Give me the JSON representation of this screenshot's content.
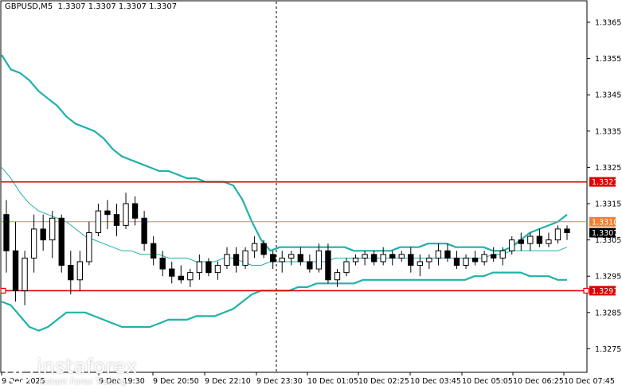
{
  "header": {
    "symbol": "GBPUSD,M5",
    "open": "1.3307",
    "high": "1.3307",
    "low": "1.3307",
    "close": "1.3307"
  },
  "logo": {
    "name": "instaforex",
    "tagline": "Instant Forex Trading"
  },
  "colors": {
    "candle": "#000000",
    "bands": "#20b2aa",
    "support_resistance": "#e00000",
    "pivot": "#f08030",
    "price_label_bg": "#000000",
    "level_label_bg": "#e00000"
  },
  "chart_data": {
    "type": "candlestick",
    "ylim": [
      1.327,
      1.3372
    ],
    "y_ticks": [
      "1.3365",
      "1.3355",
      "1.3345",
      "1.3335",
      "1.3325",
      "1.3315",
      "1.3305",
      "1.3295",
      "1.3285",
      "1.3275"
    ],
    "x_tick_labels": [
      "9 Dec 2025",
      "9 Dec 19:30",
      "9 Dec 20:50",
      "9 Dec 22:10",
      "9 Dec 23:30",
      "10 Dec 01:05",
      "10 Dec 02:25",
      "10 Dec 03:45",
      "10 Dec 05:05",
      "10 Dec 06:25",
      "10 Dec 07:45"
    ],
    "levels": [
      {
        "value": 1.3321,
        "label": "1.3321",
        "kind": "resistance"
      },
      {
        "value": 1.331,
        "label": "1.3310",
        "kind": "pivot"
      },
      {
        "value": 1.3291,
        "label": "1.3291",
        "kind": "support"
      }
    ],
    "current_price": {
      "value": 1.3307,
      "label": "1.3307"
    },
    "upper_band": [
      1.3356,
      1.3352,
      1.3351,
      1.3349,
      1.3346,
      1.3344,
      1.3342,
      1.3339,
      1.3337,
      1.3336,
      1.3335,
      1.3333,
      1.333,
      1.3328,
      1.3327,
      1.3326,
      1.3325,
      1.3324,
      1.3324,
      1.3323,
      1.3322,
      1.3322,
      1.3321,
      1.3321,
      1.3321,
      1.332,
      1.3316,
      1.331,
      1.3305,
      1.3302,
      1.3303,
      1.3303,
      1.3303,
      1.3303,
      1.3303,
      1.3303,
      1.3303,
      1.3303,
      1.3302,
      1.3302,
      1.3302,
      1.3302,
      1.3302,
      1.3303,
      1.3303,
      1.3303,
      1.3304,
      1.3304,
      1.3304,
      1.3303,
      1.3303,
      1.3303,
      1.3303,
      1.3302,
      1.3302,
      1.3303,
      1.3305,
      1.3307,
      1.3308,
      1.3309,
      1.331,
      1.3312
    ],
    "middle_band": [
      1.3325,
      1.3322,
      1.3318,
      1.3315,
      1.3313,
      1.3312,
      1.3311,
      1.331,
      1.3308,
      1.3306,
      1.3305,
      1.3304,
      1.3303,
      1.3302,
      1.3302,
      1.3301,
      1.3301,
      1.3301,
      1.33,
      1.33,
      1.33,
      1.3299,
      1.3299,
      1.3299,
      1.33,
      1.33,
      1.3299,
      1.3298,
      1.3298,
      1.3299,
      1.3299,
      1.3299,
      1.3299,
      1.3299,
      1.3299,
      1.3299,
      1.33,
      1.33,
      1.33,
      1.33,
      1.33,
      1.33,
      1.33,
      1.33,
      1.33,
      1.33,
      1.33,
      1.33,
      1.33,
      1.33,
      1.33,
      1.33,
      1.33,
      1.3301,
      1.3301,
      1.3302,
      1.3302,
      1.3302,
      1.3302,
      1.3302,
      1.3302,
      1.3303
    ],
    "lower_band": [
      1.3288,
      1.3287,
      1.3284,
      1.3281,
      1.328,
      1.3281,
      1.3283,
      1.3285,
      1.3285,
      1.3285,
      1.3284,
      1.3283,
      1.3282,
      1.3281,
      1.3281,
      1.3281,
      1.3281,
      1.3282,
      1.3283,
      1.3283,
      1.3283,
      1.3284,
      1.3284,
      1.3284,
      1.3285,
      1.3286,
      1.3288,
      1.329,
      1.3291,
      1.3291,
      1.3291,
      1.3291,
      1.3292,
      1.3292,
      1.3293,
      1.3293,
      1.3293,
      1.3293,
      1.3293,
      1.3294,
      1.3294,
      1.3294,
      1.3294,
      1.3294,
      1.3294,
      1.3294,
      1.3294,
      1.3294,
      1.3294,
      1.3294,
      1.3294,
      1.3295,
      1.3295,
      1.3296,
      1.3296,
      1.3296,
      1.3296,
      1.3295,
      1.3295,
      1.3295,
      1.3294,
      1.3294
    ],
    "candles": [
      [
        1.3312,
        1.3316,
        1.3296,
        1.3302
      ],
      [
        1.3302,
        1.331,
        1.3288,
        1.3291
      ],
      [
        1.3291,
        1.3302,
        1.3287,
        1.33
      ],
      [
        1.33,
        1.3312,
        1.3296,
        1.3308
      ],
      [
        1.3308,
        1.3312,
        1.3302,
        1.3305
      ],
      [
        1.3305,
        1.3313,
        1.33,
        1.3311
      ],
      [
        1.3311,
        1.3312,
        1.3296,
        1.3298
      ],
      [
        1.3298,
        1.3302,
        1.329,
        1.3294
      ],
      [
        1.3294,
        1.3302,
        1.3291,
        1.3299
      ],
      [
        1.3299,
        1.331,
        1.3298,
        1.3307
      ],
      [
        1.3307,
        1.3315,
        1.3306,
        1.3313
      ],
      [
        1.3313,
        1.3316,
        1.3308,
        1.3312
      ],
      [
        1.3312,
        1.3315,
        1.3306,
        1.3309
      ],
      [
        1.3309,
        1.3318,
        1.3308,
        1.3315
      ],
      [
        1.3315,
        1.3317,
        1.3309,
        1.3311
      ],
      [
        1.3311,
        1.3313,
        1.3302,
        1.3304
      ],
      [
        1.3304,
        1.3306,
        1.3298,
        1.33
      ],
      [
        1.33,
        1.3302,
        1.3295,
        1.3297
      ],
      [
        1.3297,
        1.3299,
        1.3293,
        1.3295
      ],
      [
        1.3295,
        1.3298,
        1.3293,
        1.3294
      ],
      [
        1.3294,
        1.3297,
        1.3292,
        1.3296
      ],
      [
        1.3296,
        1.3301,
        1.3294,
        1.3299
      ],
      [
        1.3299,
        1.33,
        1.3295,
        1.3296
      ],
      [
        1.3296,
        1.3299,
        1.3294,
        1.3298
      ],
      [
        1.3298,
        1.3303,
        1.3297,
        1.3301
      ],
      [
        1.3301,
        1.3303,
        1.3296,
        1.3298
      ],
      [
        1.3298,
        1.3303,
        1.3297,
        1.3302
      ],
      [
        1.3302,
        1.3306,
        1.33,
        1.3304
      ],
      [
        1.3304,
        1.3305,
        1.33,
        1.3301
      ],
      [
        1.3301,
        1.3302,
        1.3297,
        1.3299
      ],
      [
        1.3299,
        1.3302,
        1.3296,
        1.33
      ],
      [
        1.33,
        1.3302,
        1.3298,
        1.3301
      ],
      [
        1.3301,
        1.3303,
        1.3298,
        1.3299
      ],
      [
        1.3299,
        1.3301,
        1.3296,
        1.3297
      ],
      [
        1.3297,
        1.3304,
        1.3296,
        1.3302
      ],
      [
        1.3302,
        1.3304,
        1.3293,
        1.3294
      ],
      [
        1.3294,
        1.3297,
        1.3292,
        1.3296
      ],
      [
        1.3296,
        1.33,
        1.3295,
        1.3299
      ],
      [
        1.3299,
        1.3301,
        1.3298,
        1.33
      ],
      [
        1.33,
        1.3302,
        1.3298,
        1.3301
      ],
      [
        1.3301,
        1.3302,
        1.3298,
        1.3299
      ],
      [
        1.3299,
        1.3303,
        1.3298,
        1.3301
      ],
      [
        1.3301,
        1.3302,
        1.3298,
        1.33
      ],
      [
        1.33,
        1.3302,
        1.3299,
        1.3301
      ],
      [
        1.3301,
        1.3303,
        1.3296,
        1.3298
      ],
      [
        1.3298,
        1.3301,
        1.3295,
        1.3299
      ],
      [
        1.3299,
        1.3301,
        1.3297,
        1.33
      ],
      [
        1.33,
        1.3304,
        1.3298,
        1.3302
      ],
      [
        1.3302,
        1.3304,
        1.3299,
        1.33
      ],
      [
        1.33,
        1.3302,
        1.3297,
        1.3298
      ],
      [
        1.3298,
        1.3301,
        1.3297,
        1.33
      ],
      [
        1.33,
        1.3302,
        1.3298,
        1.3299
      ],
      [
        1.3299,
        1.3302,
        1.3298,
        1.3301
      ],
      [
        1.3301,
        1.3303,
        1.3299,
        1.33
      ],
      [
        1.33,
        1.3303,
        1.3298,
        1.3302
      ],
      [
        1.3302,
        1.3306,
        1.3301,
        1.3305
      ],
      [
        1.3305,
        1.3307,
        1.3302,
        1.3304
      ],
      [
        1.3304,
        1.3307,
        1.3302,
        1.3306
      ],
      [
        1.3306,
        1.3308,
        1.3303,
        1.3304
      ],
      [
        1.3304,
        1.3307,
        1.3303,
        1.3305
      ],
      [
        1.3305,
        1.3309,
        1.3304,
        1.3308
      ],
      [
        1.3308,
        1.3309,
        1.3305,
        1.3307
      ]
    ]
  }
}
